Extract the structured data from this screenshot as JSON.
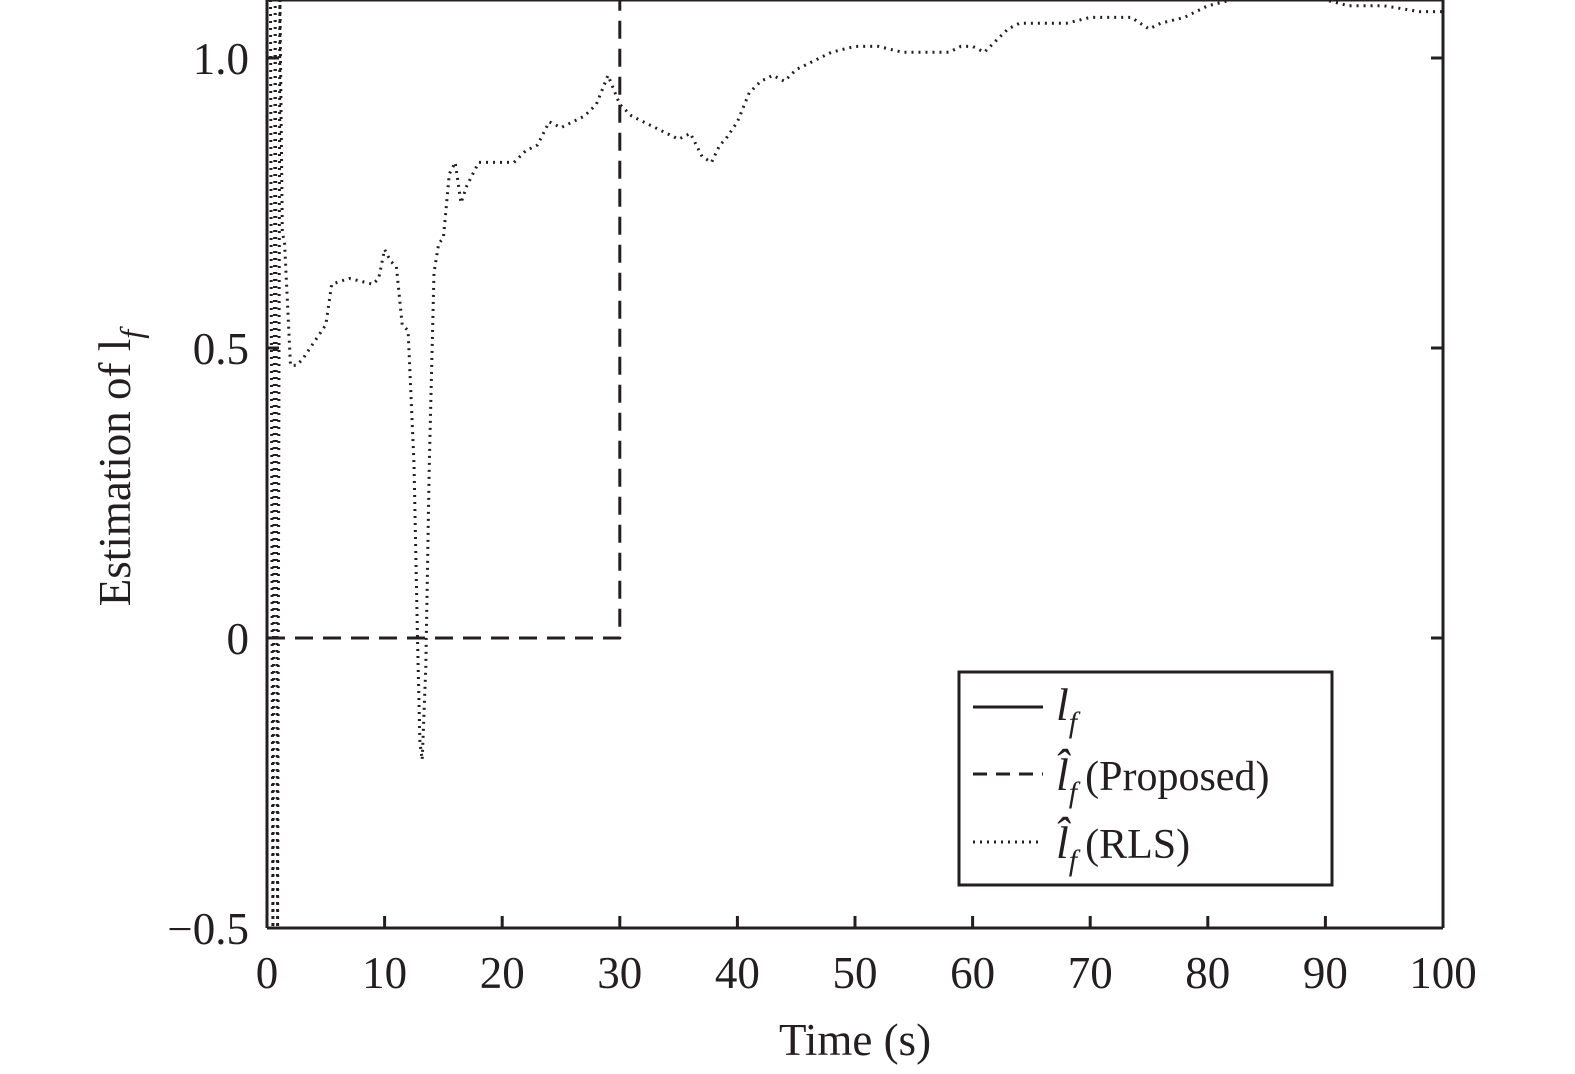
{
  "chart_data": {
    "type": "line",
    "xlabel": "Time (s)",
    "ylabel": "Estimation of l",
    "ylabel_subscript": "f",
    "xlim": [
      0,
      100
    ],
    "ylim": [
      -0.5,
      1.1
    ],
    "xticks": [
      0,
      10,
      20,
      30,
      40,
      50,
      60,
      70,
      80,
      90,
      100
    ],
    "xtick_labels": [
      "0",
      "10",
      "20",
      "30",
      "40",
      "50",
      "60",
      "70",
      "80",
      "90",
      "100"
    ],
    "yticks": [
      -0.5,
      0,
      0.5,
      1.0
    ],
    "ytick_labels": [
      "−0.5",
      "0",
      "0.5",
      "1.0"
    ],
    "grid": false,
    "legend_position": "bottom-right",
    "series": [
      {
        "name": "l_f",
        "legend_symbol": "l",
        "legend_subscript": "f",
        "legend_text": "",
        "style": "solid",
        "x": [
          0,
          100
        ],
        "y": [
          1.1,
          1.1
        ]
      },
      {
        "name": "l̂_f (Proposed)",
        "legend_symbol": "l̂",
        "legend_subscript": "f",
        "legend_text": "(Proposed)",
        "style": "dashed",
        "x": [
          0,
          30,
          30,
          100
        ],
        "y": [
          0,
          0,
          1.1,
          1.1
        ]
      },
      {
        "name": "l̂_f (RLS)",
        "legend_symbol": "l̂",
        "legend_subscript": "f",
        "legend_text": "(RLS)",
        "style": "dotted",
        "x": [
          0.3,
          0.5,
          0.7,
          0.9,
          1.1,
          1.3,
          1.5,
          2.0,
          2.5,
          3.0,
          4.0,
          5.0,
          5.5,
          7.0,
          9.0,
          9.5,
          10.0,
          10.5,
          11.0,
          11.5,
          12.0,
          12.5,
          12.8,
          13.0,
          13.2,
          13.5,
          13.8,
          14.2,
          14.6,
          15.0,
          15.5,
          16.0,
          16.5,
          17.0,
          18.0,
          19.0,
          20.0,
          21.0,
          22.0,
          23.0,
          24.0,
          25.0,
          26.0,
          27.0,
          28.0,
          29.0,
          30.0,
          31.0,
          32.0,
          33.0,
          34.0,
          35.0,
          36.0,
          37.0,
          37.8,
          38.5,
          39.0,
          40.0,
          41.0,
          42.0,
          43.0,
          44.0,
          45.0,
          46.0,
          47.0,
          48.0,
          50.0,
          52.0,
          54.0,
          56.0,
          58.0,
          59.0,
          60.0,
          61.0,
          62.0,
          63.0,
          64.0,
          66.0,
          68.0,
          70.0,
          72.0,
          73.5,
          75.0,
          76.0,
          78.0,
          80.0,
          82.0,
          84.0,
          86.0,
          88.0,
          90.0,
          92.0,
          95.0,
          98.0,
          100.0
        ],
        "y": [
          1.1,
          -0.5,
          1.1,
          -0.5,
          1.1,
          0.7,
          0.68,
          0.47,
          0.47,
          0.48,
          0.51,
          0.54,
          0.61,
          0.62,
          0.61,
          0.62,
          0.67,
          0.65,
          0.64,
          0.54,
          0.53,
          0.3,
          0.0,
          -0.18,
          -0.21,
          -0.05,
          0.3,
          0.63,
          0.68,
          0.69,
          0.8,
          0.82,
          0.75,
          0.78,
          0.82,
          0.82,
          0.82,
          0.82,
          0.84,
          0.85,
          0.89,
          0.88,
          0.89,
          0.9,
          0.92,
          0.97,
          0.92,
          0.9,
          0.89,
          0.88,
          0.87,
          0.86,
          0.87,
          0.83,
          0.82,
          0.85,
          0.86,
          0.89,
          0.94,
          0.96,
          0.97,
          0.96,
          0.98,
          0.99,
          1.0,
          1.01,
          1.02,
          1.02,
          1.01,
          1.01,
          1.01,
          1.02,
          1.02,
          1.01,
          1.03,
          1.05,
          1.06,
          1.06,
          1.06,
          1.07,
          1.07,
          1.07,
          1.05,
          1.06,
          1.07,
          1.09,
          1.1,
          1.1,
          1.1,
          1.1,
          1.1,
          1.09,
          1.09,
          1.08,
          1.08
        ]
      }
    ]
  }
}
